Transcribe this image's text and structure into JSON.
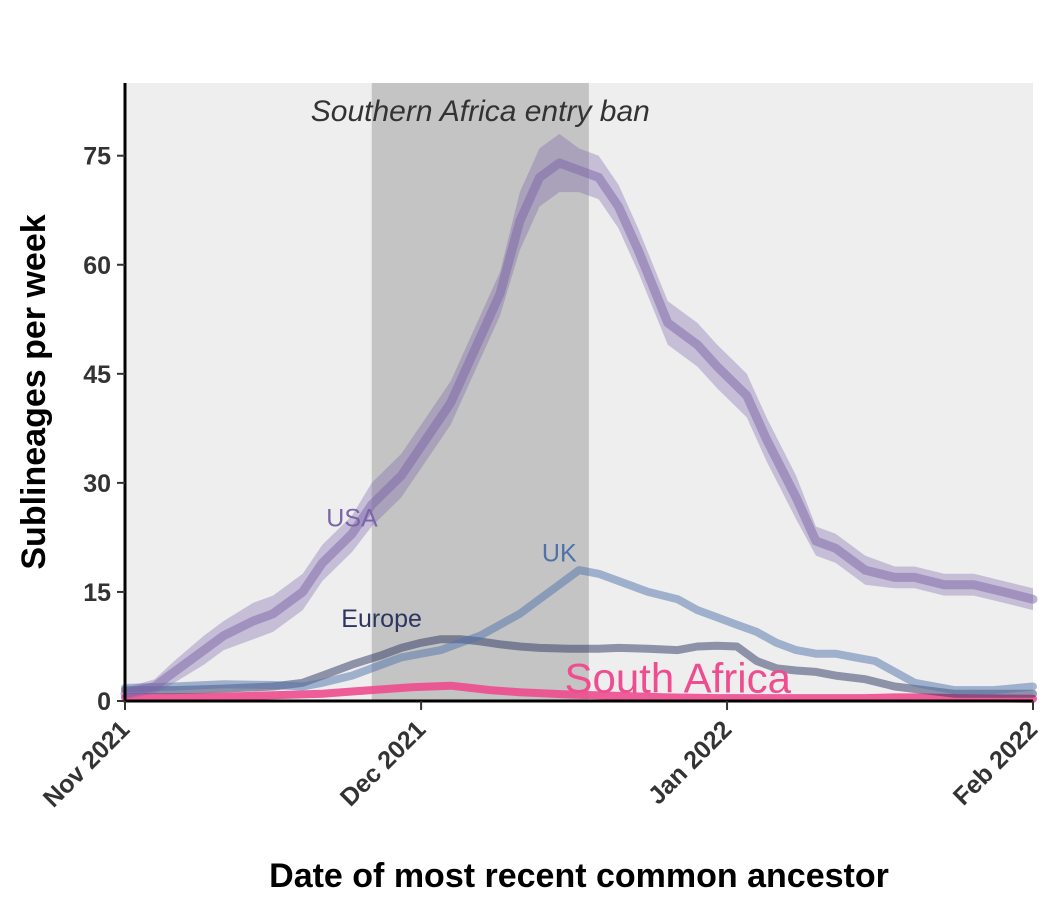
{
  "chart_data": {
    "type": "line",
    "xlabel": "Date of most recent common ancestor",
    "ylabel": "Sublineages per week",
    "x_unit": "days since 2021-11-01",
    "xlim": [
      0,
      92
    ],
    "ylim": [
      0,
      85
    ],
    "yticks": [
      0,
      15,
      30,
      45,
      60,
      75
    ],
    "xticks": [
      {
        "value": 0,
        "label": "Nov 2021"
      },
      {
        "value": 30,
        "label": "Dec 2021"
      },
      {
        "value": 61,
        "label": "Jan 2022"
      },
      {
        "value": 92,
        "label": "Feb 2022"
      }
    ],
    "shaded_region": {
      "from": 25,
      "to": 47,
      "label": "Southern Africa entry ban"
    },
    "series": [
      {
        "name": "USA",
        "color": "#7b64a8",
        "label_size": "small",
        "x": [
          0,
          3,
          5,
          8,
          10,
          13,
          15,
          18,
          20,
          23,
          25,
          28,
          30,
          33,
          35,
          38,
          40,
          42,
          44,
          46,
          48,
          50,
          52,
          55,
          58,
          60,
          63,
          65,
          68,
          70,
          72,
          75,
          78,
          80,
          83,
          86,
          89,
          92
        ],
        "y": [
          1,
          2,
          4,
          7,
          9,
          11,
          12,
          15,
          19,
          23,
          27,
          31,
          35,
          41,
          47,
          56,
          66,
          72,
          74,
          73,
          72,
          68,
          62,
          52,
          49,
          46,
          42,
          36,
          28,
          22,
          21,
          18,
          17,
          17,
          16,
          16,
          15,
          14
        ],
        "lower": [
          0.3,
          1,
          2.5,
          5,
          7,
          8.5,
          9.5,
          12.5,
          16.5,
          20.5,
          24,
          28,
          32,
          38,
          44,
          53,
          62,
          68,
          70,
          70,
          69,
          65,
          59,
          49,
          46,
          43,
          39,
          33,
          25,
          20,
          19,
          16,
          15.5,
          15.5,
          14.5,
          14.5,
          13.5,
          12.5
        ],
        "upper": [
          1.8,
          3,
          5.5,
          9,
          11,
          13.5,
          14.5,
          17.5,
          21.5,
          25.5,
          30,
          34,
          38,
          44,
          50,
          59,
          70,
          76,
          78,
          76,
          75,
          71,
          65,
          55,
          52,
          49,
          45,
          39,
          31,
          24,
          23,
          20,
          18.5,
          18.5,
          17.5,
          17.5,
          16.5,
          15.5
        ],
        "label_pos": {
          "x": 23,
          "y": 24
        }
      },
      {
        "name": "UK",
        "color": "#4f72a9",
        "label_size": "small",
        "x": [
          0,
          5,
          10,
          15,
          18,
          20,
          23,
          26,
          28,
          30,
          32,
          34,
          36,
          38,
          40,
          42,
          44,
          46,
          48,
          50,
          53,
          56,
          58,
          60,
          62,
          64,
          66,
          68,
          70,
          72,
          74,
          76,
          78,
          80,
          84,
          88,
          92
        ],
        "y": [
          1.8,
          2,
          2.3,
          2.2,
          2,
          2.5,
          3.5,
          5,
          6,
          6.5,
          7,
          8,
          9,
          10.5,
          12,
          14,
          16,
          18,
          17.5,
          16.5,
          15,
          14,
          12.5,
          11.5,
          10.5,
          9.5,
          8,
          7,
          6.5,
          6.5,
          6,
          5.5,
          4,
          2.5,
          1.5,
          1.5,
          2
        ],
        "label_pos": {
          "x": 44,
          "y": 19.2
        }
      },
      {
        "name": "Europe",
        "color": "#2e3561",
        "label_size": "small",
        "x": [
          0,
          5,
          10,
          15,
          18,
          20,
          23,
          26,
          28,
          30,
          32,
          34,
          36,
          38,
          40,
          42,
          45,
          48,
          50,
          53,
          56,
          58,
          60,
          62,
          64,
          66,
          68,
          70,
          72,
          75,
          78,
          81,
          84,
          88,
          92
        ],
        "y": [
          1.5,
          1.5,
          1.7,
          2,
          2.5,
          3.5,
          5,
          6.3,
          7.3,
          8,
          8.5,
          8.5,
          8.2,
          7.8,
          7.5,
          7.3,
          7.2,
          7.2,
          7.3,
          7.2,
          7,
          7.5,
          7.6,
          7.5,
          5.5,
          4.5,
          4.2,
          4,
          3.5,
          3,
          2,
          1.5,
          1,
          1,
          1
        ],
        "label_pos": {
          "x": 26,
          "y": 10.2
        }
      },
      {
        "name": "South Africa",
        "color": "#ee4d8f",
        "label_size": "large",
        "x": [
          0,
          5,
          10,
          15,
          20,
          23,
          26,
          29,
          31,
          33,
          35,
          37,
          40,
          45,
          50,
          55,
          60,
          65,
          70,
          75,
          78,
          80,
          85,
          92
        ],
        "y": [
          0.5,
          0.5,
          0.6,
          0.8,
          1,
          1.3,
          1.6,
          1.9,
          2,
          2.1,
          1.8,
          1.5,
          1.2,
          0.9,
          0.7,
          0.5,
          0.4,
          0.4,
          0.4,
          0.4,
          0.5,
          0.5,
          0.4,
          0.3
        ],
        "label_pos": {
          "x": 56,
          "y": 1.2
        }
      }
    ]
  }
}
